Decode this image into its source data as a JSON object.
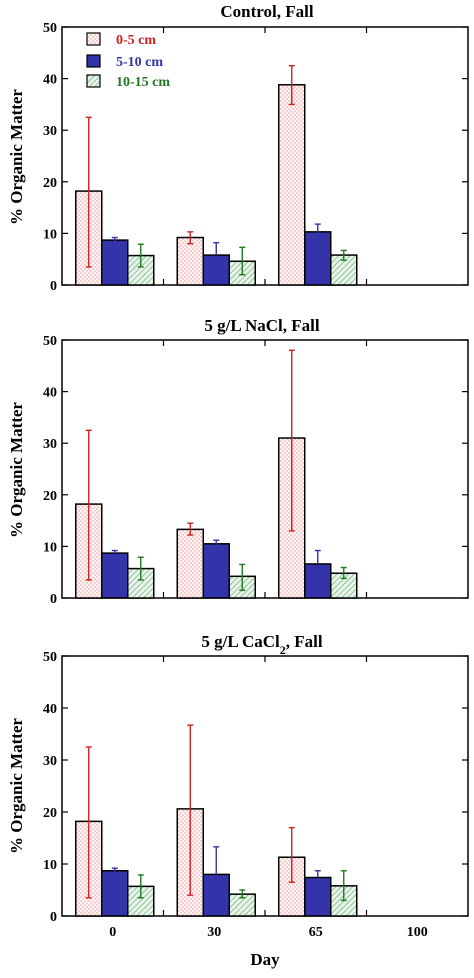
{
  "chart_data": {
    "type": "bar",
    "categories": [
      "0",
      "30",
      "65",
      "100"
    ],
    "xlabel": "Day",
    "ylabel": "% Organic Matter",
    "ylim": [
      0,
      50
    ],
    "yticks": [
      "0",
      "10",
      "20",
      "30",
      "40",
      "50"
    ],
    "grid": false,
    "legend": {
      "placement": "top-left",
      "entries": [
        {
          "label": "0-5 cm",
          "color": "#cc2222",
          "pattern": "dots-pink"
        },
        {
          "label": "5-10 cm",
          "color": "#3333aa",
          "pattern": "solid-blue"
        },
        {
          "label": "10-15 cm",
          "color": "#227722",
          "pattern": "hatch-green"
        }
      ]
    },
    "panels": [
      {
        "title": "Control, Fall",
        "series": [
          {
            "name": "0-5 cm",
            "values": [
              18.2,
              9.2,
              38.8,
              null
            ],
            "err_low": [
              3.5,
              8.0,
              35.0,
              null
            ],
            "err_high": [
              32.5,
              10.3,
              42.5,
              null
            ]
          },
          {
            "name": "5-10 cm",
            "values": [
              8.7,
              5.8,
              10.3,
              null
            ],
            "err_low": [
              8.3,
              5.8,
              9.0,
              null
            ],
            "err_high": [
              9.2,
              8.2,
              11.8,
              null
            ]
          },
          {
            "name": "10-15 cm",
            "values": [
              5.7,
              4.6,
              5.8,
              null
            ],
            "err_low": [
              3.5,
              2.0,
              4.8,
              null
            ],
            "err_high": [
              7.9,
              7.3,
              6.7,
              null
            ]
          }
        ]
      },
      {
        "title_main": "5 g/L NaCl, Fall",
        "title_sub": "",
        "title_tail": "",
        "series": [
          {
            "name": "0-5 cm",
            "values": [
              18.2,
              13.3,
              31.0,
              null
            ],
            "err_low": [
              3.5,
              12.2,
              13.0,
              null
            ],
            "err_high": [
              32.5,
              14.5,
              48.0,
              null
            ]
          },
          {
            "name": "5-10 cm",
            "values": [
              8.7,
              10.5,
              6.6,
              null
            ],
            "err_low": [
              8.3,
              10.0,
              6.6,
              null
            ],
            "err_high": [
              9.2,
              11.2,
              9.2,
              null
            ]
          },
          {
            "name": "10-15 cm",
            "values": [
              5.7,
              4.2,
              4.8,
              null
            ],
            "err_low": [
              3.5,
              1.5,
              3.8,
              null
            ],
            "err_high": [
              7.9,
              6.5,
              5.9,
              null
            ]
          }
        ]
      },
      {
        "title_main": "5 g/L CaCl",
        "title_sub": "2",
        "title_tail": ", Fall",
        "series": [
          {
            "name": "0-5 cm",
            "values": [
              18.2,
              20.6,
              11.3,
              null
            ],
            "err_low": [
              3.5,
              4.0,
              6.5,
              null
            ],
            "err_high": [
              32.5,
              36.7,
              17.0,
              null
            ]
          },
          {
            "name": "5-10 cm",
            "values": [
              8.7,
              8.0,
              7.4,
              null
            ],
            "err_low": [
              8.3,
              8.0,
              7.4,
              null
            ],
            "err_high": [
              9.2,
              13.3,
              8.7,
              null
            ]
          },
          {
            "name": "10-15 cm",
            "values": [
              5.7,
              4.2,
              5.8,
              null
            ],
            "err_low": [
              3.5,
              3.5,
              3.0,
              null
            ],
            "err_high": [
              7.9,
              5.0,
              8.7,
              null
            ]
          }
        ]
      }
    ]
  }
}
